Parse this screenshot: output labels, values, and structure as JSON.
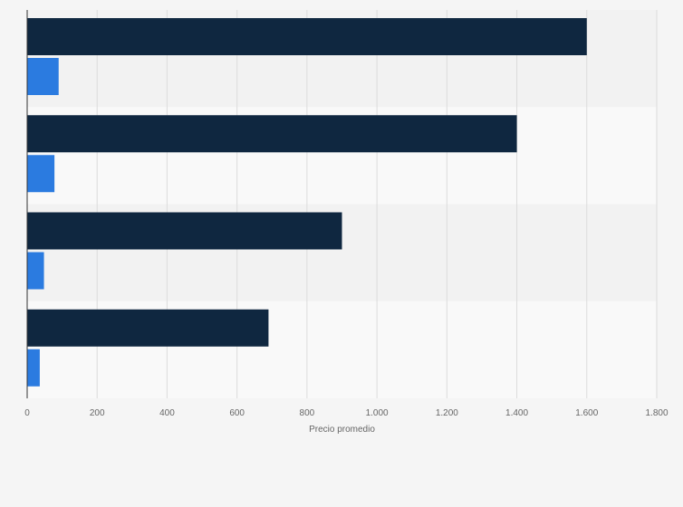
{
  "chart_data": {
    "type": "bar",
    "orientation": "horizontal",
    "categories": [
      "",
      "",
      "",
      ""
    ],
    "series": [
      {
        "color": "#0f2740",
        "values": [
          1600,
          1400,
          900,
          690
        ]
      },
      {
        "color": "#2b7be0",
        "values": [
          90,
          78,
          48,
          36
        ]
      }
    ],
    "xlabel": "Precio promedio",
    "ylabel": "",
    "xlim": [
      0,
      1800
    ],
    "x_ticks": [
      0,
      200,
      400,
      600,
      800,
      1000,
      1200,
      1400,
      1600,
      1800
    ],
    "x_tick_labels": [
      "0",
      "200",
      "400",
      "600",
      "800",
      "1.000",
      "1.200",
      "1.400",
      "1.600",
      "1.800"
    ],
    "grid": true,
    "legend": "none",
    "band_colors": [
      "#f2f2f2",
      "#f9f9f9"
    ]
  }
}
